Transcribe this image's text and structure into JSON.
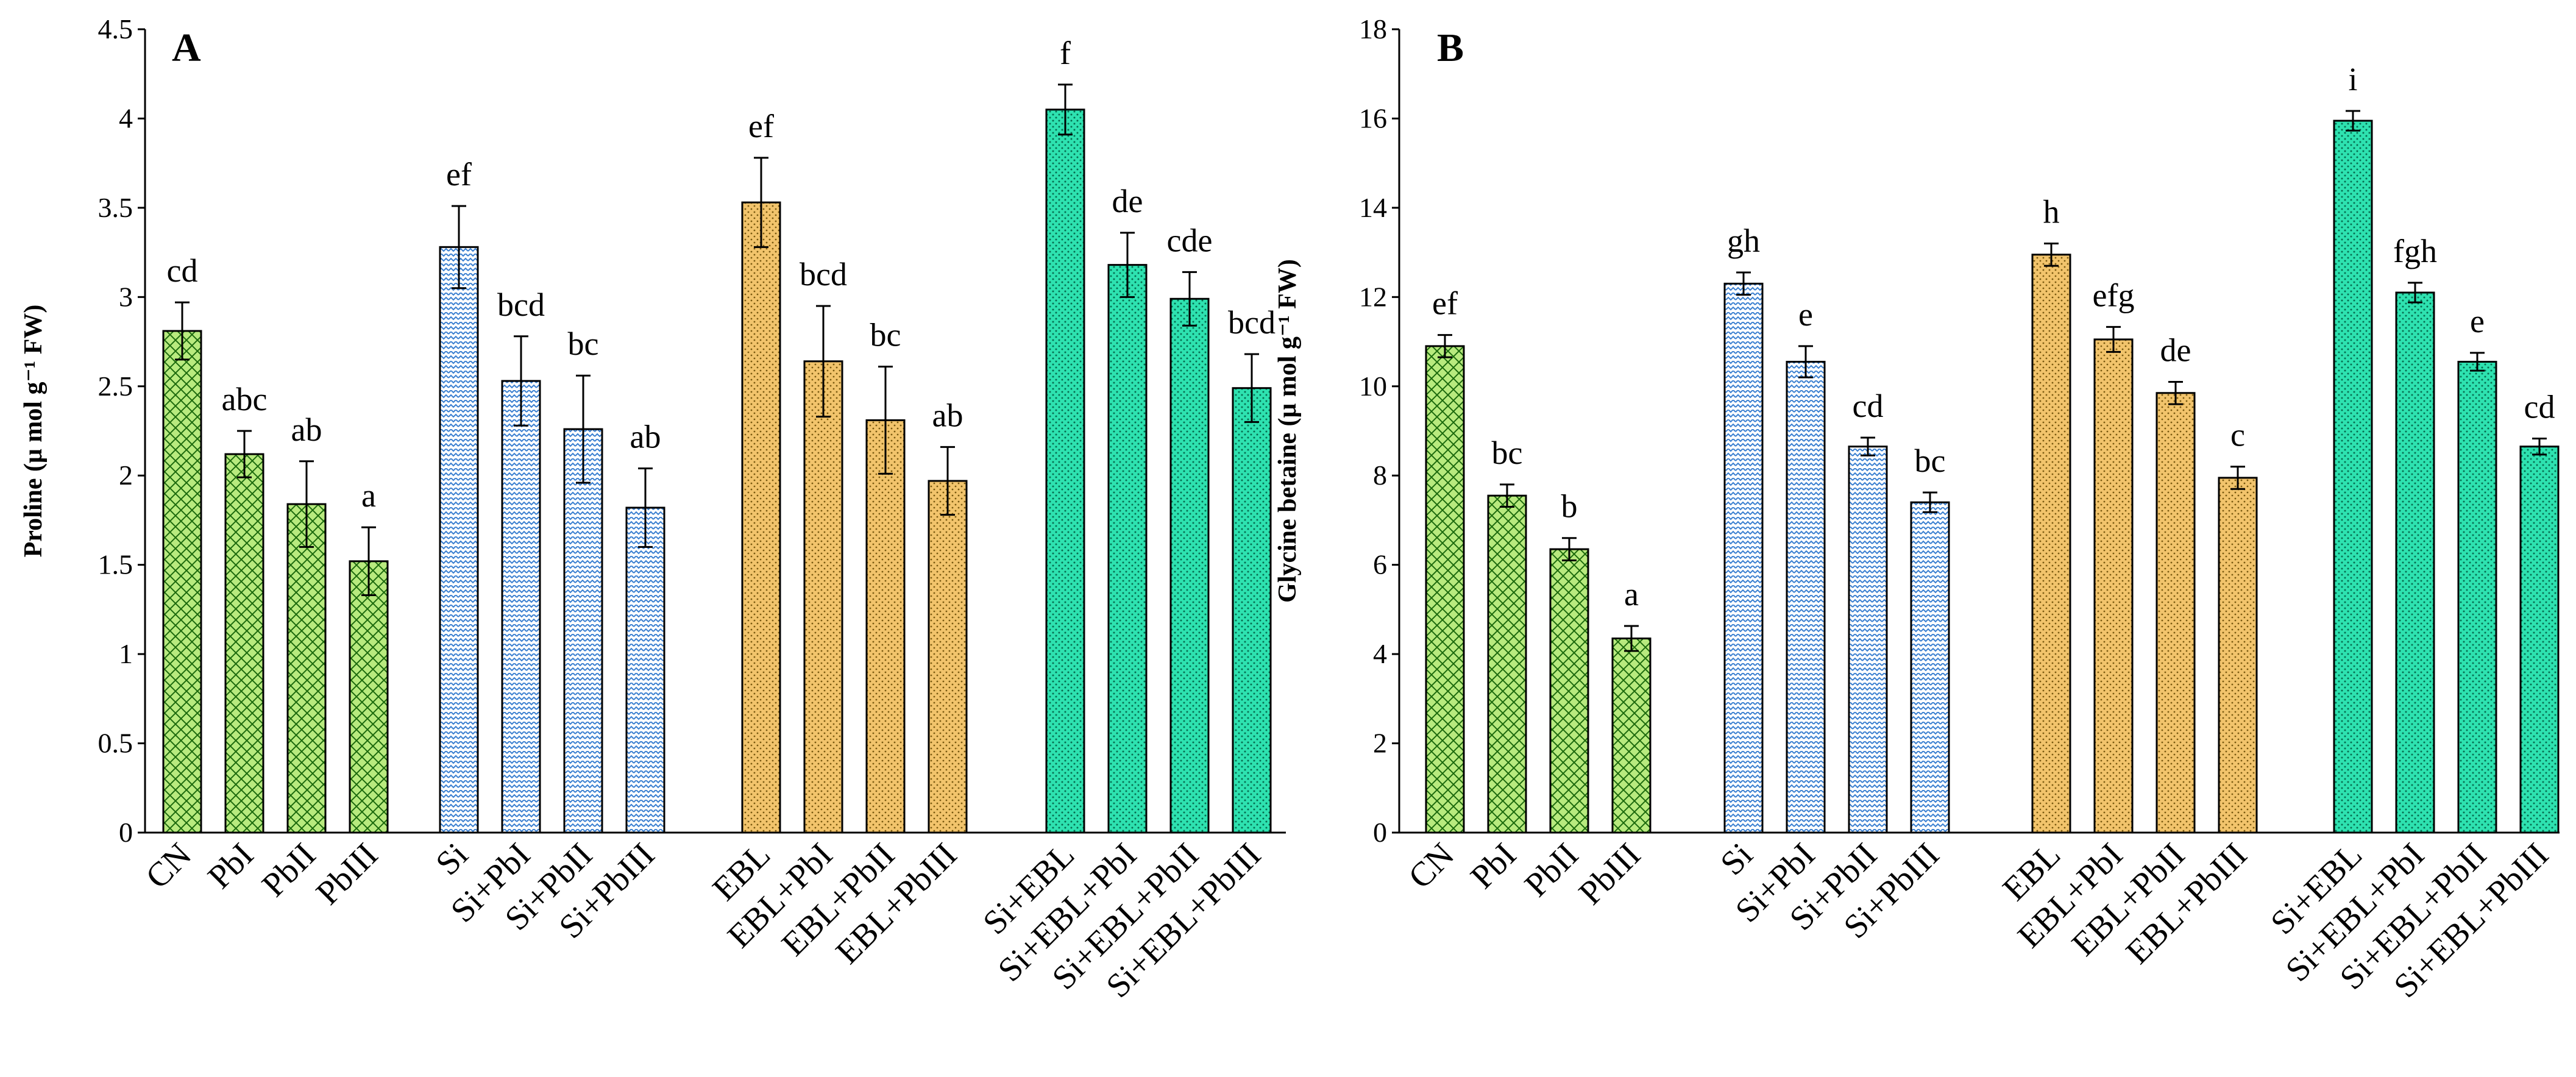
{
  "chart_data": [
    {
      "type": "bar",
      "panel_label": "A",
      "ylabel": "Proline (μ mol g⁻¹ FW)",
      "ylim": [
        0,
        4.5
      ],
      "yticks": [
        "0",
        "0.5",
        "1",
        "1.5",
        "2",
        "2.5",
        "3",
        "3.5",
        "4",
        "4.5"
      ],
      "categories": [
        "CN",
        "PbI",
        "PbII",
        "PbIII",
        "Si",
        "Si+PbI",
        "Si+PbII",
        "Si+PbIII",
        "EBL",
        "EBL+PbI",
        "EBL+PbII",
        "EBL+PbIII",
        "Si+EBL",
        "Si+EBL+PbI",
        "Si+EBL+PbII",
        "Si+EBL+PbIII"
      ],
      "values": [
        2.81,
        2.12,
        1.84,
        1.52,
        3.28,
        2.53,
        2.26,
        1.82,
        3.53,
        2.64,
        2.31,
        1.97,
        4.05,
        3.18,
        2.99,
        2.49
      ],
      "errors": [
        0.16,
        0.13,
        0.24,
        0.19,
        0.23,
        0.25,
        0.3,
        0.22,
        0.25,
        0.31,
        0.3,
        0.19,
        0.14,
        0.18,
        0.15,
        0.19
      ],
      "letters": [
        "cd",
        "abc",
        "ab",
        "a",
        "ef",
        "bcd",
        "bc",
        "ab",
        "ef",
        "bcd",
        "bc",
        "ab",
        "f",
        "de",
        "cde",
        "bcd"
      ]
    },
    {
      "type": "bar",
      "panel_label": "B",
      "ylabel": "Glycine betaine (μ mol g⁻¹ FW)",
      "ylim": [
        0,
        18
      ],
      "yticks": [
        "0",
        "2",
        "4",
        "6",
        "8",
        "10",
        "12",
        "14",
        "16",
        "18"
      ],
      "categories": [
        "CN",
        "PbI",
        "PbII",
        "PbIII",
        "Si",
        "Si+PbI",
        "Si+PbII",
        "Si+PbIII",
        "EBL",
        "EBL+PbI",
        "EBL+PbII",
        "EBL+PbIII",
        "Si+EBL",
        "Si+EBL+PbI",
        "Si+EBL+PbII",
        "Si+EBL+PbIII"
      ],
      "values": [
        10.9,
        7.55,
        6.35,
        4.35,
        12.3,
        10.55,
        8.65,
        7.4,
        12.95,
        11.05,
        9.85,
        7.95,
        15.95,
        12.1,
        10.55,
        8.65
      ],
      "errors": [
        0.25,
        0.25,
        0.25,
        0.28,
        0.25,
        0.35,
        0.2,
        0.22,
        0.25,
        0.28,
        0.25,
        0.25,
        0.22,
        0.22,
        0.2,
        0.18
      ],
      "letters": [
        "ef",
        "bc",
        "b",
        "a",
        "gh",
        "e",
        "cd",
        "bc",
        "h",
        "efg",
        "de",
        "c",
        "i",
        "fgh",
        "e",
        "cd"
      ]
    }
  ],
  "group_colors": [
    "#b8ea7e",
    "#b6d3f2",
    "#f2c46c",
    "#2ee2b0"
  ],
  "group_patterns": [
    "crosshatch",
    "zigzag",
    "dots",
    "dots"
  ]
}
